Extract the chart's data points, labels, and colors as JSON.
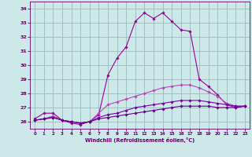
{
  "x": [
    0,
    1,
    2,
    3,
    4,
    5,
    6,
    7,
    8,
    9,
    10,
    11,
    12,
    13,
    14,
    15,
    16,
    17,
    18,
    19,
    20,
    21,
    22,
    23
  ],
  "line1": [
    26.2,
    26.6,
    26.6,
    26.1,
    25.9,
    25.8,
    26.0,
    26.5,
    29.3,
    30.5,
    31.3,
    33.1,
    33.7,
    33.3,
    33.7,
    33.1,
    32.5,
    32.4,
    29.0,
    28.5,
    27.9,
    27.2,
    27.0,
    27.1
  ],
  "line2": [
    26.1,
    26.2,
    26.4,
    26.1,
    26.0,
    25.9,
    26.0,
    26.6,
    27.2,
    27.4,
    27.6,
    27.8,
    28.0,
    28.2,
    28.4,
    28.5,
    28.6,
    28.6,
    28.4,
    28.1,
    27.8,
    27.3,
    27.1,
    27.1
  ],
  "line3": [
    26.1,
    26.2,
    26.3,
    26.1,
    26.0,
    25.9,
    26.0,
    26.3,
    26.5,
    26.6,
    26.8,
    27.0,
    27.1,
    27.2,
    27.3,
    27.4,
    27.5,
    27.5,
    27.5,
    27.4,
    27.3,
    27.2,
    27.1,
    27.1
  ],
  "line4": [
    26.1,
    26.2,
    26.3,
    26.1,
    26.0,
    25.9,
    26.0,
    26.2,
    26.3,
    26.4,
    26.5,
    26.6,
    26.7,
    26.8,
    26.9,
    27.0,
    27.1,
    27.1,
    27.1,
    27.1,
    27.0,
    27.0,
    27.0,
    27.1
  ],
  "line_color1": "#990099",
  "line_color2": "#bb44bb",
  "line_color3": "#7700aa",
  "line_color4": "#660088",
  "bg_color": "#cce8e8",
  "grid_color": "#99bbbb",
  "axis_color": "#660066",
  "xlabel": "Windchill (Refroidissement éolien,°C)",
  "xlabel_color": "#660066",
  "tick_color": "#660066",
  "ylim_min": 25.5,
  "ylim_max": 34.5,
  "xlim_min": -0.5,
  "xlim_max": 23.5,
  "yticks": [
    26,
    27,
    28,
    29,
    30,
    31,
    32,
    33,
    34
  ],
  "xticks": [
    0,
    1,
    2,
    3,
    4,
    5,
    6,
    7,
    8,
    9,
    10,
    11,
    12,
    13,
    14,
    15,
    16,
    17,
    18,
    19,
    20,
    21,
    22,
    23
  ]
}
